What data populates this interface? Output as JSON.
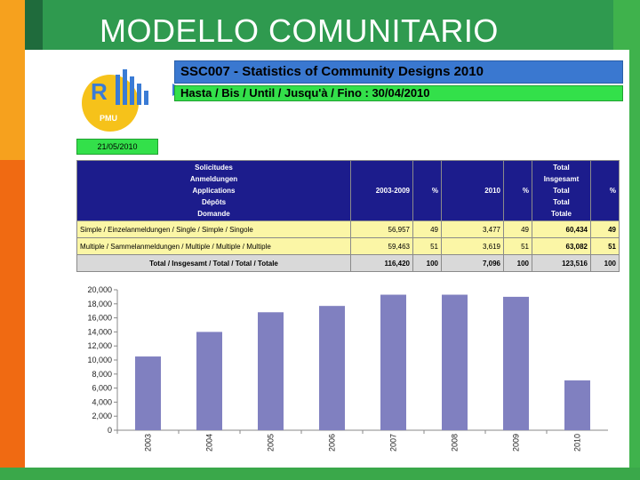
{
  "slide": {
    "title": "MODELLO COMUNITARIO"
  },
  "logo": {
    "letter": "R",
    "text": "PMU"
  },
  "report": {
    "title": "SSC007 - Statistics of Community Designs 2010",
    "until": "Hasta / Bis / Until / Jusqu'à / Fino : 30/04/2010",
    "date": "21/05/2010"
  },
  "table": {
    "header": {
      "label_lines": [
        "Solicitudes",
        "Anmeldungen",
        "Applications",
        "Dépôts",
        "Domande"
      ],
      "col_2003_2009": "2003-2009",
      "col_pct1": "%",
      "col_2010": "2010",
      "col_pct2": "%",
      "total_lines": [
        "Total",
        "Insgesamt",
        "Total",
        "Total",
        "Totale"
      ],
      "col_pct3": "%"
    },
    "rows": [
      {
        "label": "Simple / Einzelanmeldungen / Single / Simple / Singole",
        "v1": "56,957",
        "p1": "49",
        "v2": "3,477",
        "p2": "49",
        "tot": "60,434",
        "p3": "49"
      },
      {
        "label": "Multiple / Sammelanmeldungen / Multiple / Multiple / Multiple",
        "v1": "59,463",
        "p1": "51",
        "v2": "3,619",
        "p2": "51",
        "tot": "63,082",
        "p3": "51"
      }
    ],
    "total": {
      "label": "Total / Insgesamt / Total / Total / Totale",
      "v1": "116,420",
      "p1": "100",
      "v2": "7,096",
      "p2": "100",
      "tot": "123,516",
      "p3": "100"
    }
  },
  "chart_data": {
    "type": "bar",
    "categories": [
      "2003",
      "2004",
      "2005",
      "2006",
      "2007",
      "2008",
      "2009",
      "2010"
    ],
    "values": [
      10500,
      14000,
      16800,
      17700,
      19300,
      19300,
      19000,
      7100
    ],
    "ylim": [
      0,
      20000
    ],
    "yticks": [
      "0",
      "2,000",
      "4,000",
      "6,000",
      "8,000",
      "10,000",
      "12,000",
      "14,000",
      "16,000",
      "18,000",
      "20,000"
    ],
    "bar_color": "#8080c0",
    "grid": false
  },
  "colors": {
    "title_banner": "#3a78d0",
    "date_banner": "#33e04a",
    "table_header": "#1c1c8c",
    "table_row": "#fbf6a6",
    "table_total": "#d9d9d9"
  }
}
